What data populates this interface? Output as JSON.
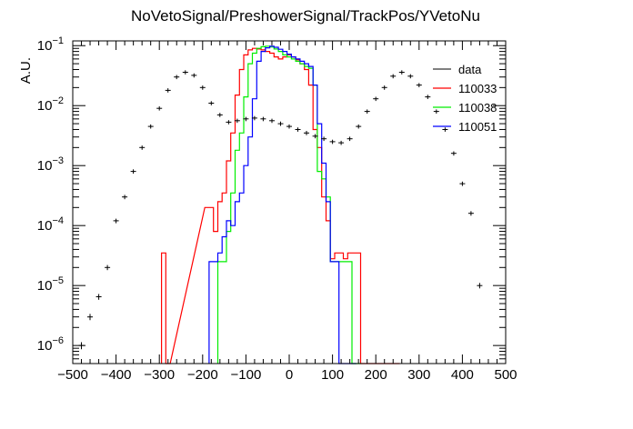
{
  "chart_data": {
    "type": "line",
    "title": "NoVetoSignal/PreshowerSignal/TrackPos/YVetoNu",
    "xlabel": "",
    "ylabel": "A.U.",
    "xlim": [
      -500,
      500
    ],
    "ylim": [
      5e-07,
      0.12
    ],
    "ylog": true,
    "legend_position": "top-right",
    "x_ticks": [
      "−500",
      "−400",
      "−300",
      "−200",
      "−100",
      "0",
      "100",
      "200",
      "300",
      "400",
      "500"
    ],
    "y_ticks": [
      {
        "value": 1e-06,
        "base": "10",
        "exp": "−6"
      },
      {
        "value": 1e-05,
        "base": "10",
        "exp": "−5"
      },
      {
        "value": 0.0001,
        "base": "10",
        "exp": "−4"
      },
      {
        "value": 0.001,
        "base": "10",
        "exp": "−3"
      },
      {
        "value": 0.01,
        "base": "10",
        "exp": "−2"
      },
      {
        "value": 0.1,
        "base": "10",
        "exp": "−1"
      }
    ],
    "data_points": {
      "name": "data",
      "color": "#000000",
      "x": [
        -480,
        -460,
        -440,
        -420,
        -400,
        -380,
        -360,
        -340,
        -320,
        -300,
        -280,
        -260,
        -240,
        -220,
        -200,
        -180,
        -160,
        -140,
        -120,
        -100,
        -80,
        -60,
        -40,
        -20,
        0,
        20,
        40,
        60,
        80,
        100,
        120,
        140,
        160,
        180,
        200,
        220,
        240,
        260,
        280,
        300,
        320,
        340,
        360,
        380,
        400,
        420,
        440
      ],
      "y": [
        1e-06,
        3e-06,
        6.5e-06,
        2e-05,
        0.00012,
        0.0003,
        0.0008,
        0.002,
        0.0045,
        0.009,
        0.018,
        0.03,
        0.036,
        0.032,
        0.02,
        0.011,
        0.007,
        0.0053,
        0.0056,
        0.006,
        0.0062,
        0.006,
        0.0056,
        0.005,
        0.0045,
        0.004,
        0.0035,
        0.0031,
        0.0028,
        0.0025,
        0.0024,
        0.0028,
        0.0045,
        0.008,
        0.013,
        0.02,
        0.031,
        0.036,
        0.031,
        0.022,
        0.014,
        0.008,
        0.004,
        0.0016,
        0.0005,
        0.00016,
        1e-05
      ]
    },
    "series": [
      {
        "name": "110033",
        "color": "#ff0000",
        "x": [
          -290,
          -280,
          -190,
          -180,
          -170,
          -160,
          -150,
          -140,
          -130,
          -120,
          -110,
          -100,
          -90,
          -80,
          -70,
          -60,
          -50,
          -40,
          -30,
          -20,
          -10,
          0,
          10,
          20,
          30,
          40,
          50,
          60,
          70,
          80,
          90,
          100,
          110,
          120,
          130,
          140,
          150,
          160,
          170,
          180,
          190,
          200,
          210,
          220,
          230,
          240,
          250
        ],
        "y": [
          3.5e-05,
          0,
          0.0002,
          0.0002,
          8e-05,
          0.00025,
          0.00035,
          0.0012,
          0.0035,
          0.015,
          0.04,
          0.07,
          0.085,
          0.09,
          0.088,
          0.085,
          0.08,
          0.075,
          0.065,
          0.06,
          0.065,
          0.07,
          0.065,
          0.058,
          0.05,
          0.04,
          0.022,
          0.004,
          0.002,
          0.0003,
          0.00012,
          2.8e-05,
          3.5e-05,
          3.5e-05,
          2.8e-05,
          3.5e-05,
          3.5e-05,
          3.5e-05,
          0,
          0,
          0,
          0,
          0,
          0,
          0,
          0,
          0
        ]
      },
      {
        "name": "110038",
        "color": "#00ee00",
        "x": [
          -160,
          -150,
          -140,
          -130,
          -120,
          -110,
          -100,
          -90,
          -80,
          -70,
          -60,
          -50,
          -40,
          -30,
          -20,
          -10,
          0,
          10,
          20,
          30,
          40,
          50,
          60,
          70,
          80,
          90,
          100,
          110,
          120,
          130,
          140,
          150,
          160
        ],
        "y": [
          2.5e-05,
          2.5e-05,
          8e-05,
          0.00035,
          0.0018,
          0.0035,
          0.014,
          0.05,
          0.075,
          0.09,
          0.096,
          0.098,
          0.095,
          0.088,
          0.08,
          0.07,
          0.065,
          0.06,
          0.055,
          0.05,
          0.045,
          0.042,
          0.022,
          0.0008,
          0.0006,
          0.0003,
          2.5e-05,
          2.5e-05,
          2.5e-05,
          2.5e-05,
          2.5e-05,
          0,
          0
        ]
      },
      {
        "name": "110051",
        "color": "#0000ff",
        "x": [
          -180,
          -170,
          -160,
          -150,
          -140,
          -130,
          -120,
          -110,
          -100,
          -90,
          -80,
          -70,
          -60,
          -50,
          -40,
          -30,
          -20,
          -10,
          0,
          10,
          20,
          30,
          40,
          50,
          60,
          70,
          80,
          90,
          100,
          110,
          120,
          130,
          140,
          150
        ],
        "y": [
          2.5e-05,
          2.5e-05,
          3.5e-05,
          6.5e-05,
          0.00012,
          0.0001,
          0.00025,
          0.00035,
          0.001,
          0.003,
          0.013,
          0.055,
          0.08,
          0.092,
          0.098,
          0.094,
          0.087,
          0.08,
          0.072,
          0.065,
          0.06,
          0.055,
          0.05,
          0.045,
          0.022,
          0.005,
          0.0011,
          0.00025,
          2.5e-05,
          2.5e-05,
          0,
          0,
          0,
          0
        ]
      }
    ]
  }
}
